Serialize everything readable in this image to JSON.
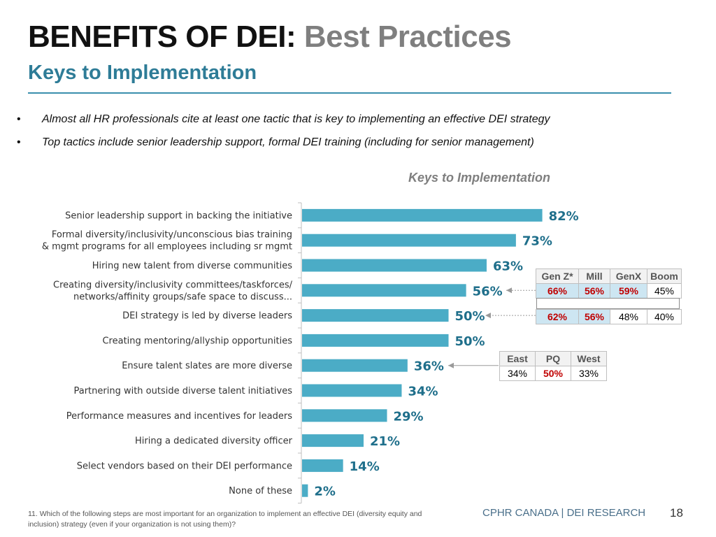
{
  "header": {
    "title_main": "BENEFITS OF DEI:",
    "title_accent": "Best Practices",
    "subtitle": "Keys to Implementation"
  },
  "bullets": [
    "Almost all HR professionals cite at least one tactic that is key to implementing an effective DEI strategy",
    "Top tactics include senior leadership support, formal DEI training (including for senior management)"
  ],
  "bullet_symbol": "•",
  "chart_data": {
    "type": "bar",
    "orientation": "horizontal",
    "title": "Keys to Implementation",
    "categories": [
      [
        "Senior leadership support in backing the initiative"
      ],
      [
        "Formal diversity/inclusivity/unconscious bias training",
        "& mgmt programs for all employees including sr mgmt"
      ],
      [
        "Hiring new talent from diverse communities"
      ],
      [
        "Creating diversity/inclusivity committees/taskforces/",
        "networks/affinity groups/safe space to discuss..."
      ],
      [
        "DEI strategy is led by diverse leaders"
      ],
      [
        "Creating mentoring/allyship opportunities"
      ],
      [
        "Ensure talent slates are more diverse"
      ],
      [
        "Partnering with outside diverse talent initiatives"
      ],
      [
        "Performance measures and incentives for leaders"
      ],
      [
        "Hiring a dedicated diversity officer"
      ],
      [
        "Select vendors based on their DEI performance"
      ],
      [
        "None of these"
      ]
    ],
    "values": [
      82,
      73,
      63,
      56,
      50,
      50,
      36,
      34,
      29,
      21,
      14,
      2
    ],
    "value_labels": [
      "82%",
      "73%",
      "63%",
      "56%",
      "50%",
      "50%",
      "36%",
      "34%",
      "29%",
      "21%",
      "14%",
      "2%"
    ],
    "bar_color": "#4bacc6",
    "value_color": "#1f6f8b",
    "xlim": [
      0,
      100
    ],
    "grid": false
  },
  "generation_table": {
    "headers": [
      "Gen Z*",
      "Mill",
      "GenX",
      "Boom"
    ],
    "rows": [
      {
        "values": [
          "66%",
          "56%",
          "59%",
          "45%"
        ]
      },
      {
        "values": [
          "62%",
          "56%",
          "48%",
          "40%"
        ]
      }
    ]
  },
  "region_table": {
    "headers": [
      "East",
      "PQ",
      "West"
    ],
    "values": [
      "34%",
      "50%",
      "33%"
    ]
  },
  "highlight_color": "#c00000",
  "footnote": "11.  Which of the following steps are most important for an organization to implement an effective DEI (diversity equity and inclusion) strategy (even if your organization is not using them)?",
  "footer": {
    "brand": "CPHR CANADA | DEI RESEARCH",
    "page_number": "18"
  }
}
